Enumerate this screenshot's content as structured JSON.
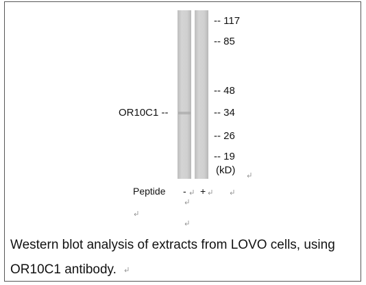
{
  "blot": {
    "target_label": "OR10C1 --",
    "markers": [
      "-- 117",
      "-- 85",
      "-- 48",
      "-- 34",
      "-- 26",
      "-- 19"
    ],
    "unit": "(kD)",
    "peptide_label": "Peptide",
    "lanes": [
      "-",
      "+"
    ]
  },
  "caption": {
    "lines": [
      "Western blot analysis of extracts from LOVO cells, using",
      "OR10C1 antibody."
    ]
  }
}
